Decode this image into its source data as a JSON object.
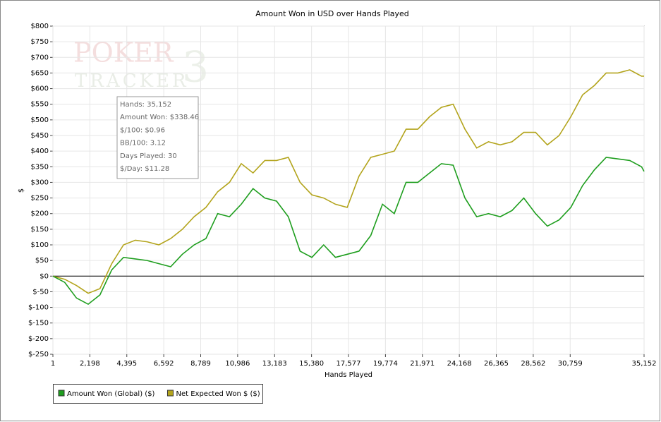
{
  "chart_data": {
    "type": "line",
    "title": "Amount Won in USD over Hands Played",
    "x_label": "Hands Played",
    "y_label": "$",
    "watermark": [
      "POKER",
      "TRACKER",
      "3"
    ],
    "annotations": [
      "Hands: 35,152",
      "Amount Won: $338.46",
      "$/100: $0.96",
      "BB/100: 3.12",
      "Days Played: 30",
      "$/Day: $11.28"
    ],
    "x": [
      1,
      700,
      1400,
      2100,
      2800,
      3500,
      4200,
      4900,
      5600,
      6300,
      7000,
      7700,
      8400,
      9100,
      9800,
      10500,
      11200,
      11900,
      12600,
      13300,
      14000,
      14700,
      15400,
      16100,
      16800,
      17500,
      18200,
      18900,
      19600,
      20300,
      21000,
      21700,
      22400,
      23100,
      23800,
      24500,
      25200,
      25900,
      26600,
      27300,
      28000,
      28700,
      29400,
      30100,
      30800,
      31500,
      32200,
      32900,
      33600,
      34300,
      35000,
      35152
    ],
    "series": [
      {
        "name": "Amount Won (Global) ($)",
        "color": "#1e9e1e",
        "values": [
          0,
          -20,
          -70,
          -90,
          -60,
          20,
          60,
          55,
          50,
          40,
          30,
          70,
          100,
          120,
          200,
          190,
          230,
          280,
          250,
          240,
          190,
          80,
          60,
          100,
          60,
          70,
          80,
          130,
          230,
          200,
          300,
          300,
          330,
          360,
          355,
          250,
          190,
          200,
          190,
          210,
          250,
          200,
          160,
          180,
          220,
          290,
          340,
          380,
          375,
          370,
          350,
          335
        ]
      },
      {
        "name": "Net Expected Won $ ($)",
        "color": "#b3a41c",
        "values": [
          0,
          -10,
          -30,
          -55,
          -40,
          40,
          100,
          115,
          110,
          100,
          120,
          150,
          190,
          220,
          270,
          300,
          360,
          330,
          370,
          370,
          380,
          300,
          260,
          250,
          230,
          220,
          320,
          380,
          390,
          400,
          470,
          470,
          510,
          540,
          550,
          470,
          410,
          430,
          420,
          430,
          460,
          460,
          420,
          450,
          510,
          580,
          610,
          650,
          650,
          660,
          640,
          640
        ]
      }
    ],
    "xlim": [
      1,
      35152
    ],
    "xticks": [
      1,
      {
        "value": 2198,
        "label": "2,198"
      },
      {
        "value": 4395,
        "label": "4,395"
      },
      {
        "value": 6592,
        "label": "6,592"
      },
      {
        "value": 8789,
        "label": "8,789"
      },
      {
        "value": 10986,
        "label": "10,986"
      },
      {
        "value": 13183,
        "label": "13,183"
      },
      {
        "value": 15380,
        "label": "15,380"
      },
      {
        "value": 17577,
        "label": "17,577"
      },
      {
        "value": 19774,
        "label": "19,774"
      },
      {
        "value": 21971,
        "label": "21,971"
      },
      {
        "value": 24168,
        "label": "24,168"
      },
      {
        "value": 26365,
        "label": "26,365"
      },
      {
        "value": 28562,
        "label": "28,562"
      },
      {
        "value": 30759,
        "label": "30,759"
      },
      {
        "value": 35152,
        "label": "35,152"
      }
    ],
    "ylim": [
      -250,
      800
    ],
    "yticks": [
      {
        "value": -250,
        "label": "$-250"
      },
      {
        "value": -200,
        "label": "$-200"
      },
      {
        "value": -150,
        "label": "$-150"
      },
      {
        "value": -100,
        "label": "$-100"
      },
      {
        "value": -50,
        "label": "$-50"
      },
      {
        "value": 0,
        "label": "$0"
      },
      {
        "value": 50,
        "label": "$50"
      },
      {
        "value": 100,
        "label": "$100"
      },
      {
        "value": 150,
        "label": "$150"
      },
      {
        "value": 200,
        "label": "$200"
      },
      {
        "value": 250,
        "label": "$250"
      },
      {
        "value": 300,
        "label": "$300"
      },
      {
        "value": 350,
        "label": "$350"
      },
      {
        "value": 400,
        "label": "$400"
      },
      {
        "value": 450,
        "label": "$450"
      },
      {
        "value": 500,
        "label": "$500"
      },
      {
        "value": 550,
        "label": "$550"
      },
      {
        "value": 600,
        "label": "$600"
      },
      {
        "value": 650,
        "label": "$650"
      },
      {
        "value": 700,
        "label": "$700"
      },
      {
        "value": 750,
        "label": "$750"
      },
      {
        "value": 800,
        "label": "$800"
      }
    ],
    "grid": true,
    "legend": "bottom-left"
  }
}
